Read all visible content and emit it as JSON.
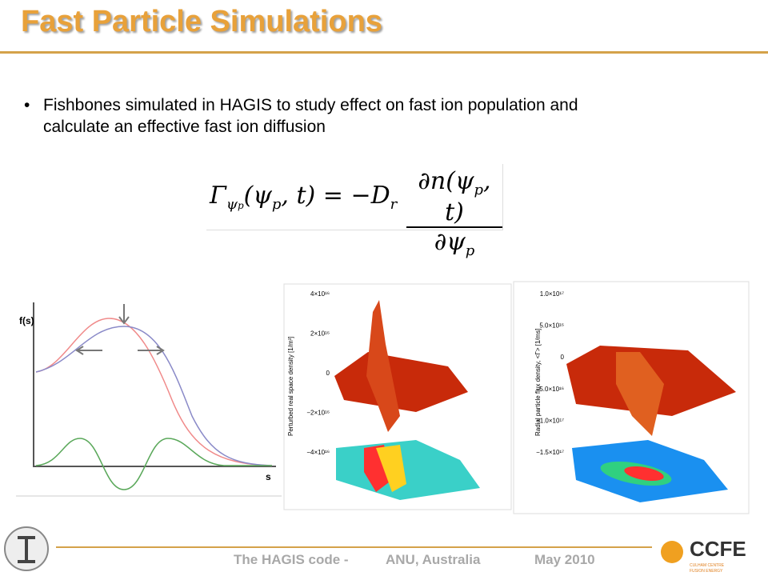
{
  "header": {
    "title": "Fast Particle Simulations"
  },
  "bullet": {
    "text": "Fishbones simulated in HAGIS to study effect on fast ion population and calculate an effective fast ion diffusion"
  },
  "equation": {
    "parts": [
      "Γ",
      "ψ",
      "p",
      "(ψ",
      "p",
      ", t) = −D",
      "r",
      "∂n(ψ",
      "p",
      ", t)",
      "∂ψ",
      "p"
    ]
  },
  "figures": [
    {
      "ylabel": "f(s)",
      "xlabel": "s"
    },
    {
      "ylabel": "Perturbed real space density [1/m³]",
      "ticks": [
        "4×10¹⁶",
        "2×10¹⁶",
        "0",
        "−2×10¹⁶",
        "−4×10¹⁶"
      ]
    },
    {
      "ylabel": "Radial particle flux density, <Γ> [1/ms]",
      "ticks": [
        "1.0×10¹⁷",
        "5.0×10¹⁶",
        "0",
        "−5.0×10¹⁶",
        "−1.0×10¹⁷",
        "−1.5×10¹⁷"
      ]
    }
  ],
  "footer": {
    "code": "The HAGIS code -",
    "place": "ANU, Australia",
    "date": "May 2010",
    "logo": "CCFE",
    "logo_sub1": "CULHAM CENTRE",
    "logo_sub2": "FUSION ENERGY"
  }
}
